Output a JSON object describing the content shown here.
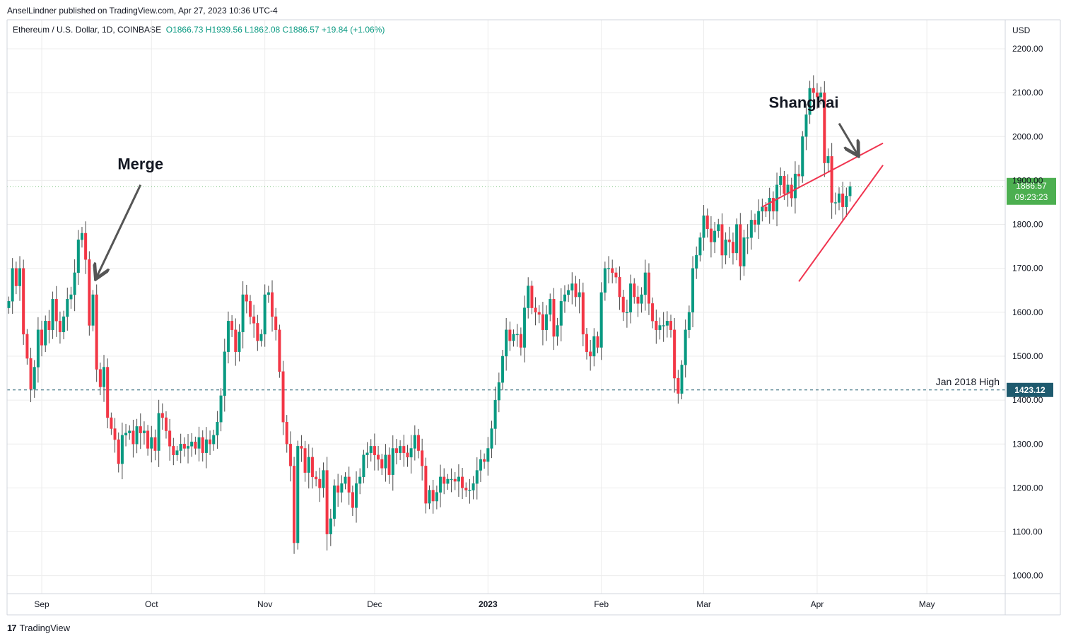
{
  "header": {
    "publisher": "AnselLindner published on TradingView.com, Apr 27, 2023 10:36 UTC-4"
  },
  "legend": {
    "symbol": "Ethereum / U.S. Dollar, 1D, COINBASE",
    "ohlc": "O1866.73 H1939.56 L1862.08 C1886.57 +19.84 (+1.06%)"
  },
  "footer": {
    "logo_icon": "tradingview-logo-icon",
    "brand": "TradingView"
  },
  "colors": {
    "up": "#089981",
    "down": "#f23645",
    "wick": "#4a4a4a",
    "grid": "#ececec",
    "hline": "#1e5a6e",
    "trend": "#f0344f",
    "arrow": "#555555",
    "price_label_bg": "#4caf50",
    "hline_label_bg": "#1e5a6e"
  },
  "chart_data": {
    "type": "candlestick",
    "title": "Ethereum / U.S. Dollar, 1D, COINBASE",
    "currency_label": "USD",
    "start_date": "2022-08-23",
    "x_ticks": [
      "Sep",
      "Oct",
      "Nov",
      "Dec",
      "2023",
      "Feb",
      "Mar",
      "Apr",
      "May"
    ],
    "x_tick_dates": [
      "2022-09-01",
      "2022-10-01",
      "2022-11-01",
      "2022-12-01",
      "2023-01-01",
      "2023-02-01",
      "2023-03-01",
      "2023-04-01",
      "2023-05-01"
    ],
    "y_ticks": [
      "2200.00",
      "2100.00",
      "2000.00",
      "1900.00",
      "1800.00",
      "1700.00",
      "1600.00",
      "1500.00",
      "1400.00",
      "1300.00",
      "1200.00",
      "1100.00",
      "1000.00"
    ],
    "ylim": [
      945,
      2225
    ],
    "grid": true,
    "last_price": {
      "value": "1886.57",
      "countdown": "09:23:23",
      "numeric": 1886.57
    },
    "horizontal_line": {
      "value": 1423.12,
      "label": "Jan 2018 High",
      "price_label": "1423.12"
    },
    "annotations": [
      {
        "text": "Merge",
        "arrow_from": [
          "2022-09-28",
          1890
        ],
        "arrow_to": [
          "2022-09-16",
          1680
        ]
      },
      {
        "text": "Shanghai",
        "arrow_from": [
          "2023-04-07",
          2030
        ],
        "arrow_to": [
          "2023-04-12",
          1960
        ]
      }
    ],
    "trend_lines": [
      {
        "from": [
          "2023-03-17",
          1840
        ],
        "to": [
          "2023-04-19",
          1985
        ]
      },
      {
        "from": [
          "2023-03-27",
          1670
        ],
        "to": [
          "2023-04-19",
          1935
        ]
      }
    ],
    "closes": [
      1625,
      1700,
      1660,
      1700,
      1550,
      1495,
      1425,
      1475,
      1560,
      1525,
      1580,
      1560,
      1630,
      1580,
      1555,
      1590,
      1630,
      1640,
      1690,
      1765,
      1780,
      1720,
      1570,
      1640,
      1470,
      1430,
      1475,
      1360,
      1335,
      1310,
      1255,
      1320,
      1325,
      1330,
      1300,
      1340,
      1325,
      1330,
      1290,
      1315,
      1285,
      1370,
      1360,
      1330,
      1295,
      1275,
      1285,
      1300,
      1290,
      1295,
      1305,
      1290,
      1315,
      1280,
      1310,
      1300,
      1320,
      1350,
      1410,
      1510,
      1580,
      1560,
      1510,
      1555,
      1640,
      1625,
      1590,
      1575,
      1535,
      1550,
      1640,
      1645,
      1590,
      1560,
      1465,
      1350,
      1300,
      1250,
      1075,
      1295,
      1290,
      1235,
      1270,
      1225,
      1220,
      1200,
      1240,
      1095,
      1130,
      1205,
      1190,
      1210,
      1225,
      1190,
      1155,
      1210,
      1225,
      1275,
      1280,
      1295,
      1275,
      1265,
      1245,
      1275,
      1230,
      1290,
      1280,
      1295,
      1280,
      1270,
      1290,
      1320,
      1285,
      1250,
      1165,
      1195,
      1170,
      1190,
      1225,
      1210,
      1220,
      1220,
      1215,
      1225,
      1200,
      1195,
      1195,
      1210,
      1240,
      1265,
      1260,
      1290,
      1335,
      1400,
      1440,
      1500,
      1560,
      1535,
      1550,
      1550,
      1520,
      1610,
      1660,
      1610,
      1600,
      1595,
      1560,
      1595,
      1630,
      1545,
      1570,
      1625,
      1640,
      1650,
      1665,
      1635,
      1645,
      1550,
      1510,
      1500,
      1545,
      1520,
      1645,
      1700,
      1700,
      1690,
      1680,
      1635,
      1600,
      1600,
      1665,
      1635,
      1620,
      1640,
      1690,
      1620,
      1580,
      1560,
      1570,
      1570,
      1580,
      1560,
      1450,
      1415,
      1480,
      1560,
      1600,
      1700,
      1730,
      1770,
      1820,
      1790,
      1760,
      1785,
      1800,
      1730,
      1765,
      1760,
      1735,
      1800,
      1705,
      1770,
      1770,
      1810,
      1800,
      1830,
      1840,
      1830,
      1860,
      1830,
      1890,
      1910,
      1870,
      1890,
      1860,
      1915,
      1910,
      2000,
      2050,
      2110,
      2100,
      2090,
      2100,
      1940,
      1955,
      1850,
      1850,
      1870,
      1840,
      1865,
      1886.57
    ],
    "annotation_label_note": "closes are daily closes from 2022-08-23"
  }
}
